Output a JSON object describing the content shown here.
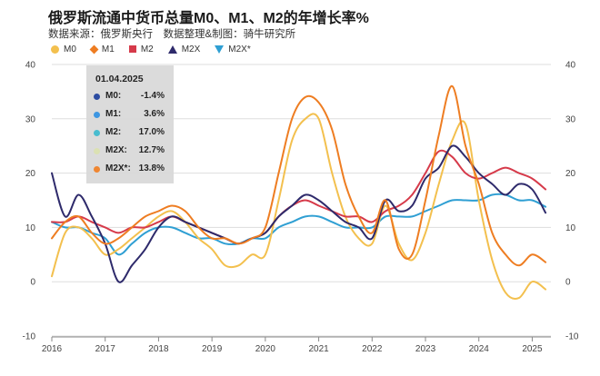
{
  "title": "俄罗斯流通中货币总量M0、M1、M2的年增长率%",
  "source": "数据来源：俄罗斯央行　数据整理&制图：骑牛研究所",
  "colors": {
    "M0": "#f3c04e",
    "M1": "#ee7d22",
    "M2": "#d63a4a",
    "M2X": "#2e2a6b",
    "M2X_star": "#2f9fd3",
    "grid": "#dddddd",
    "axis_text": "#444444"
  },
  "legend": [
    {
      "label": "M0",
      "marker": "circle",
      "color": "#f3c04e"
    },
    {
      "label": "M1",
      "marker": "diamond",
      "color": "#ee7d22"
    },
    {
      "label": "M2",
      "marker": "square",
      "color": "#d63a4a"
    },
    {
      "label": "M2X",
      "marker": "triangle-up",
      "color": "#2e2a6b"
    },
    {
      "label": "M2X*",
      "marker": "triangle-down",
      "color": "#2f9fd3"
    }
  ],
  "tooltip": {
    "date": "01.04.2025",
    "rows": [
      {
        "name": "M0:",
        "value": "-1.4%",
        "color": "#1d3f9a"
      },
      {
        "name": "M1:",
        "value": "3.6%",
        "color": "#2f8fe0"
      },
      {
        "name": "M2:",
        "value": "17.0%",
        "color": "#3bb8cc"
      },
      {
        "name": "M2X:",
        "value": "12.7%",
        "color": "#d9dfae"
      },
      {
        "name": "M2X*:",
        "value": "13.8%",
        "color": "#ee7d22"
      }
    ]
  },
  "chart_data": {
    "type": "line",
    "xlim": [
      2016.0,
      2025.35
    ],
    "ylim": [
      -10,
      40
    ],
    "x_ticks": [
      2016,
      2017,
      2018,
      2019,
      2020,
      2021,
      2022,
      2023,
      2024,
      2025
    ],
    "x_tick_labels": [
      "2016",
      "2017",
      "2018",
      "2019",
      "2020",
      "2021",
      "2022",
      "2023",
      "2024",
      "2025"
    ],
    "y_ticks": [
      -10,
      0,
      10,
      20,
      30,
      40
    ],
    "y_tick_labels": [
      "-10",
      "0",
      "10",
      "20",
      "30",
      "40"
    ],
    "grid": true,
    "legend_position": "top-left",
    "x": [
      2016.0,
      2016.25,
      2016.5,
      2016.75,
      2017.0,
      2017.25,
      2017.5,
      2017.75,
      2018.0,
      2018.25,
      2018.5,
      2018.75,
      2019.0,
      2019.25,
      2019.5,
      2019.75,
      2020.0,
      2020.25,
      2020.5,
      2020.75,
      2021.0,
      2021.25,
      2021.5,
      2021.75,
      2022.0,
      2022.25,
      2022.5,
      2022.75,
      2023.0,
      2023.25,
      2023.5,
      2023.75,
      2024.0,
      2024.25,
      2024.5,
      2024.75,
      2025.0,
      2025.25
    ],
    "series": [
      {
        "name": "M0",
        "color": "#f3c04e",
        "values": [
          1,
          9,
          10,
          8,
          5,
          6,
          8,
          10,
          12,
          13,
          11,
          8,
          6,
          3,
          3,
          5,
          5,
          15,
          26,
          30,
          30,
          20,
          12,
          8,
          7,
          14,
          7,
          4,
          9,
          18,
          26,
          29,
          15,
          4,
          -2,
          -3,
          0,
          -1.4
        ]
      },
      {
        "name": "M1",
        "color": "#ee7d22",
        "values": [
          8,
          11,
          12,
          9,
          7,
          8,
          10,
          12,
          13,
          14,
          13,
          10,
          8,
          8,
          7,
          8,
          10,
          20,
          30,
          34,
          33,
          28,
          18,
          12,
          9,
          15,
          6,
          5,
          15,
          27,
          36,
          25,
          18,
          9,
          5,
          3,
          5,
          3.6
        ]
      },
      {
        "name": "M2",
        "color": "#d63a4a",
        "values": [
          11,
          11,
          12,
          11,
          10,
          9,
          10,
          10,
          11,
          12,
          11,
          10,
          9,
          8,
          7,
          8,
          9,
          12,
          14,
          15,
          14,
          13,
          12,
          12,
          11,
          13,
          14,
          16,
          20,
          24,
          23,
          20,
          19,
          20,
          21,
          20,
          19,
          17
        ]
      },
      {
        "name": "M2X",
        "color": "#2e2a6b",
        "values": [
          20,
          12,
          16,
          12,
          7,
          0,
          3,
          6,
          10,
          12,
          11,
          10,
          9,
          8,
          7,
          8,
          9,
          12,
          14,
          16,
          15,
          13,
          11,
          10,
          8,
          15,
          13,
          14,
          19,
          21,
          25,
          23,
          20,
          18,
          16,
          18,
          17,
          12.7
        ]
      },
      {
        "name": "M2X*",
        "color": "#2f9fd3",
        "values": [
          11,
          10,
          10,
          9,
          8,
          5,
          7,
          9,
          10,
          10,
          9,
          8,
          8,
          7,
          7,
          8,
          8,
          10,
          11,
          12,
          12,
          11,
          10,
          10,
          10,
          12,
          12,
          12,
          13,
          14,
          15,
          15,
          15,
          16,
          16,
          15,
          15,
          13.8
        ]
      }
    ]
  }
}
